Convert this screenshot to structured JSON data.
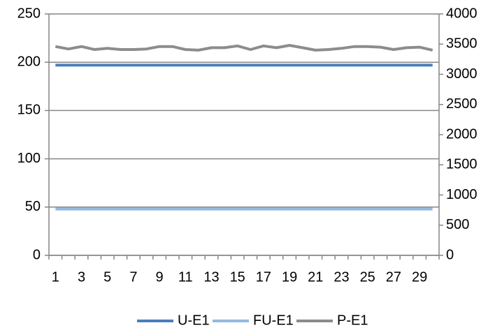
{
  "chart_data": {
    "type": "line",
    "categories": [
      1,
      null,
      3,
      null,
      5,
      null,
      7,
      null,
      9,
      null,
      11,
      null,
      13,
      null,
      15,
      null,
      17,
      null,
      19,
      null,
      21,
      null,
      23,
      null,
      25,
      null,
      27,
      null,
      29,
      null
    ],
    "series": [
      {
        "name": "U-E1",
        "color": "#4a7ebb",
        "values": [
          197,
          197,
          197,
          197,
          197,
          197,
          197,
          197,
          197,
          197,
          197,
          197,
          197,
          197,
          197,
          197,
          197,
          197,
          197,
          197,
          197,
          197,
          197,
          197,
          197,
          197,
          197,
          197,
          197,
          197
        ]
      },
      {
        "name": "FU-E1",
        "color": "#95b9e0",
        "values": [
          48,
          48,
          48,
          48,
          48,
          48,
          48,
          48,
          48,
          48,
          48,
          48,
          48,
          48,
          48,
          48,
          48,
          48,
          48,
          48,
          48,
          48,
          48,
          48,
          48,
          48,
          48,
          48,
          48,
          48
        ]
      },
      {
        "name": "P-E1",
        "color": "#8c8c8c",
        "axis": "y2",
        "values": [
          3460,
          3420,
          3460,
          3410,
          3430,
          3410,
          3410,
          3420,
          3460,
          3460,
          3410,
          3400,
          3440,
          3440,
          3470,
          3410,
          3470,
          3440,
          3480,
          3440,
          3400,
          3410,
          3430,
          3460,
          3460,
          3450,
          3410,
          3440,
          3450,
          3400
        ]
      }
    ],
    "ylim": [
      0,
      250
    ],
    "yticks": [
      0,
      50,
      100,
      150,
      200,
      250
    ],
    "y2lim": [
      0,
      4000
    ],
    "y2ticks": [
      0,
      500,
      1000,
      1500,
      2000,
      2500,
      3000,
      3500,
      4000
    ],
    "grid": true,
    "legend": "bottom"
  }
}
